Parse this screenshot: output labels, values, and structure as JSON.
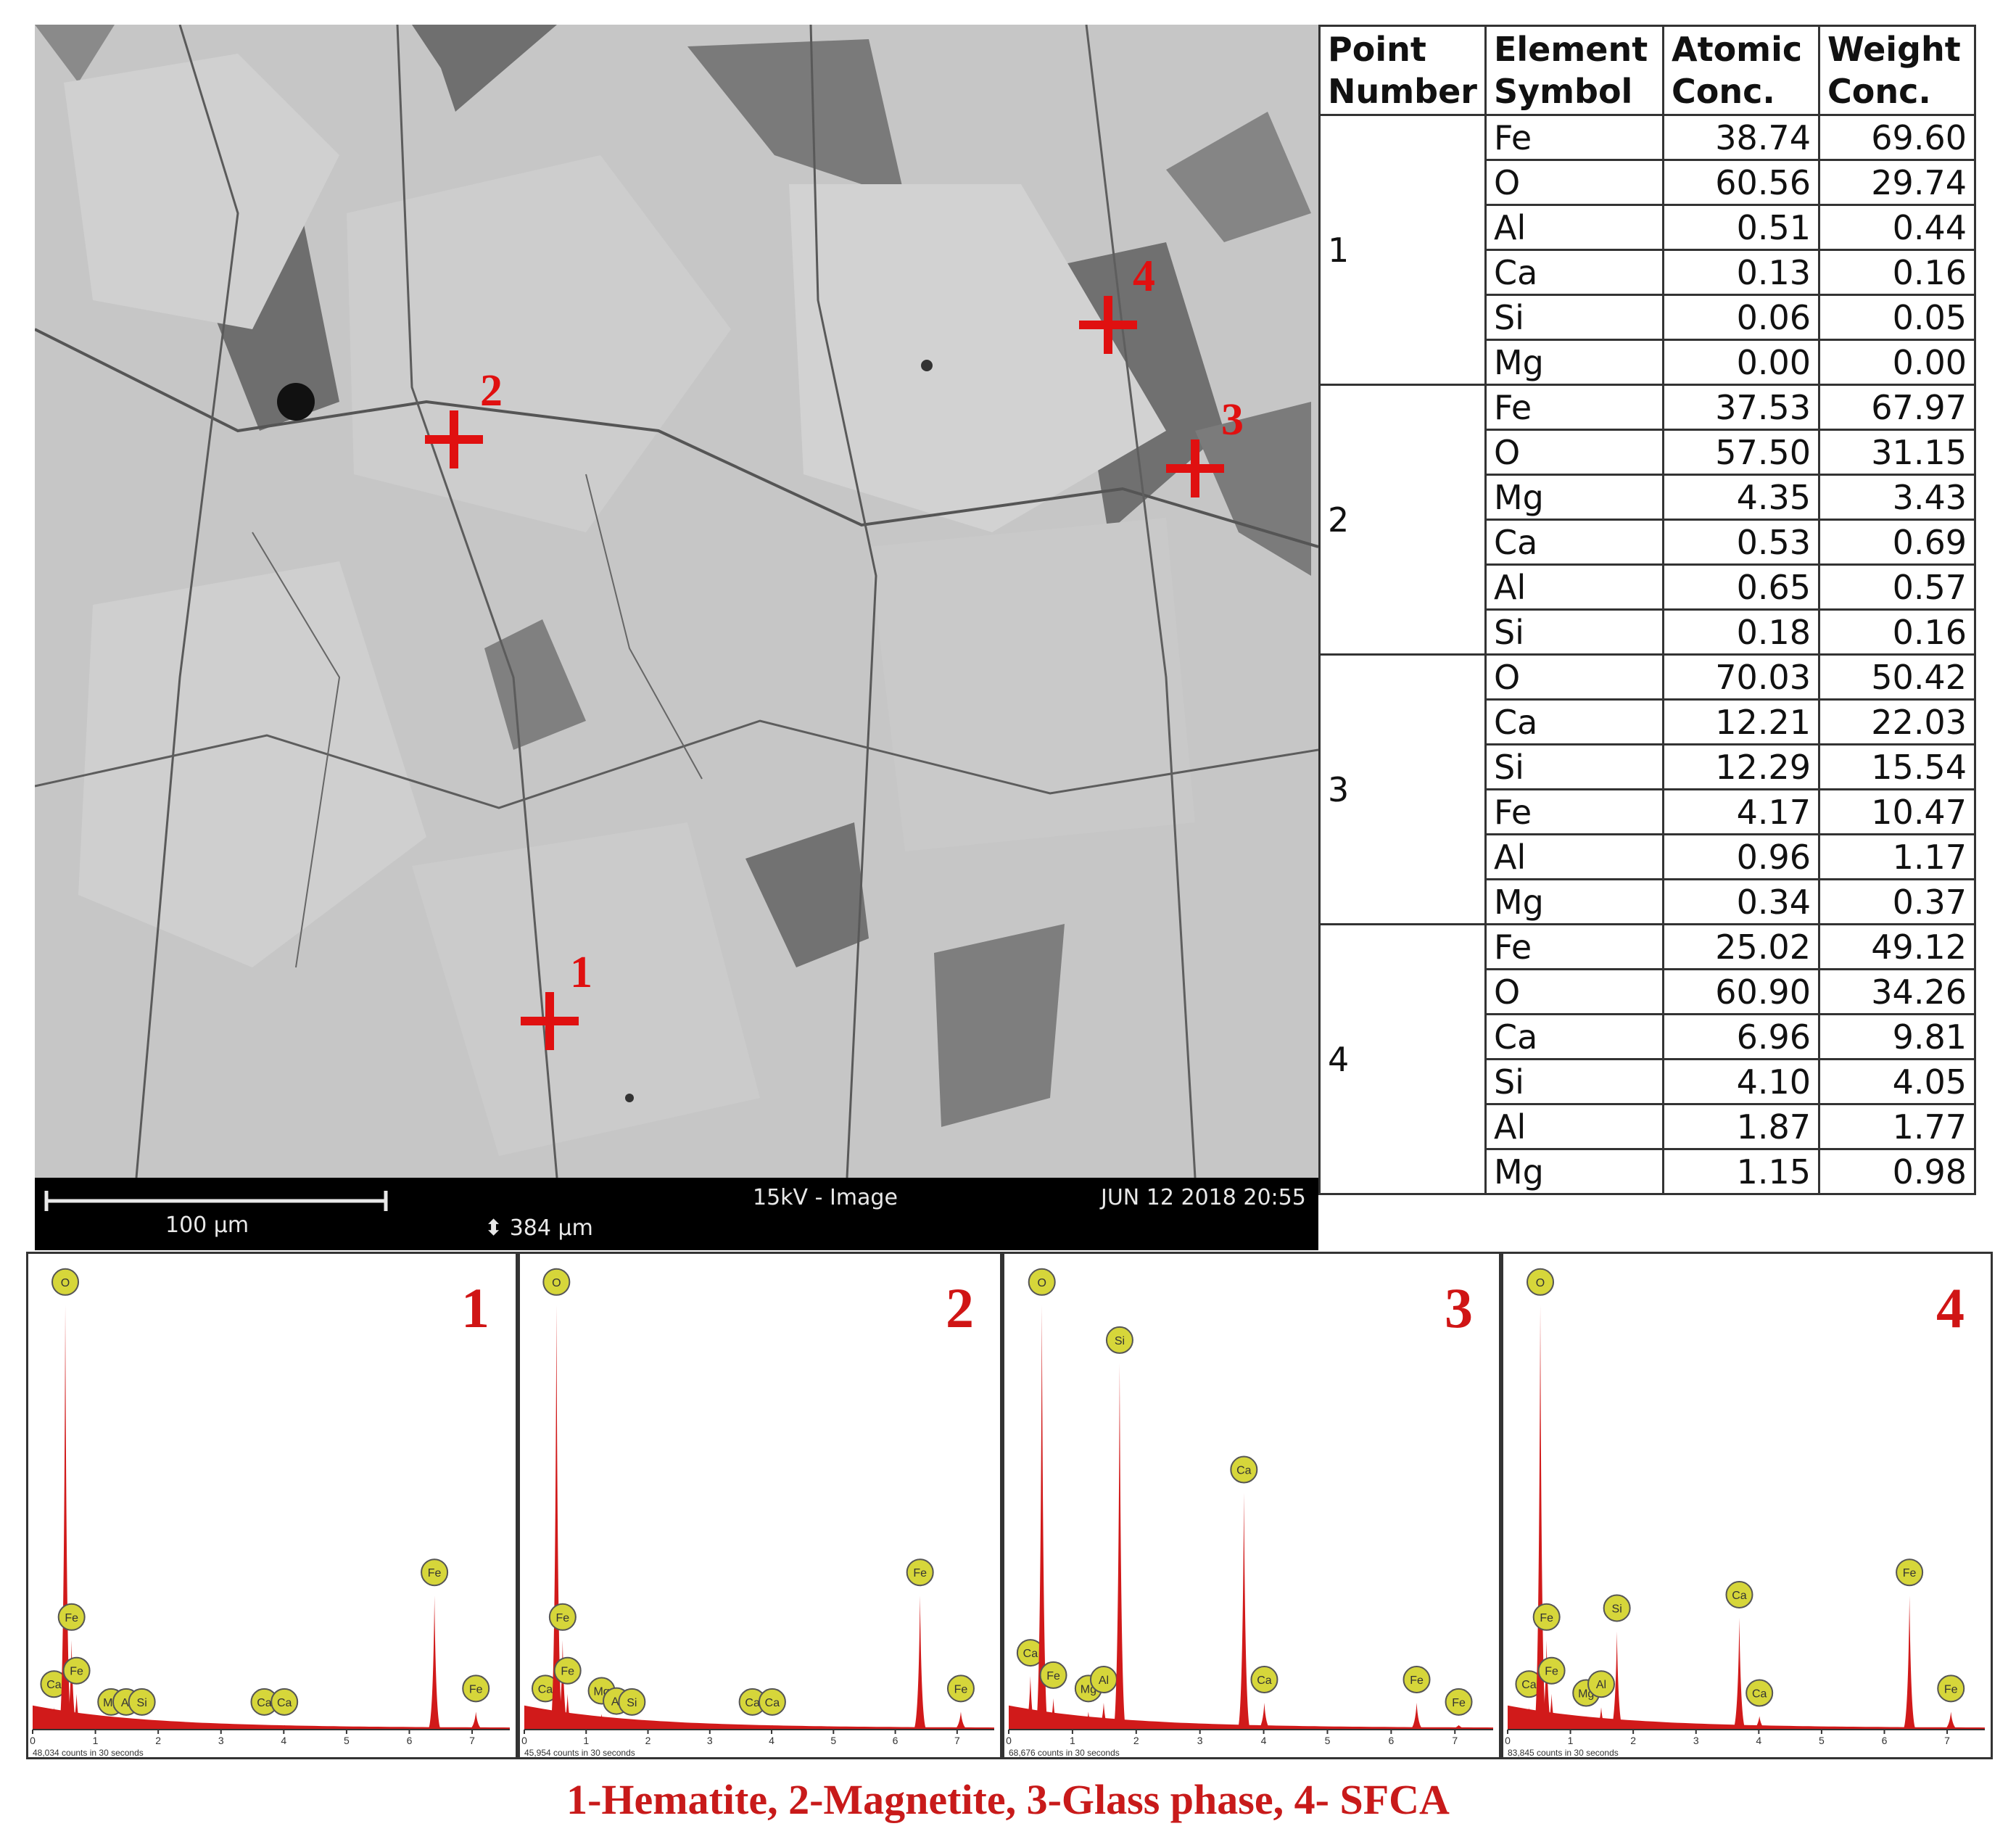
{
  "sem": {
    "scale_label": "100 µm",
    "mode_label": "15kV - Image",
    "date_label": "JUN 12 2018 20:55",
    "field_width_label": "384 µm",
    "markers": [
      {
        "label": "1"
      },
      {
        "label": "2"
      },
      {
        "label": "3"
      },
      {
        "label": "4"
      }
    ]
  },
  "table": {
    "headers": [
      "Point Number",
      "Element Symbol",
      "Atomic Conc.",
      "Weight Conc."
    ],
    "points": [
      {
        "point": "1",
        "rows": [
          {
            "el": "Fe",
            "at": "38.74",
            "wt": "69.60"
          },
          {
            "el": "O",
            "at": "60.56",
            "wt": "29.74"
          },
          {
            "el": "Al",
            "at": "0.51",
            "wt": "0.44"
          },
          {
            "el": "Ca",
            "at": "0.13",
            "wt": "0.16"
          },
          {
            "el": "Si",
            "at": "0.06",
            "wt": "0.05"
          },
          {
            "el": "Mg",
            "at": "0.00",
            "wt": "0.00"
          }
        ]
      },
      {
        "point": "2",
        "rows": [
          {
            "el": "Fe",
            "at": "37.53",
            "wt": "67.97"
          },
          {
            "el": "O",
            "at": "57.50",
            "wt": "31.15"
          },
          {
            "el": "Mg",
            "at": "4.35",
            "wt": "3.43"
          },
          {
            "el": "Ca",
            "at": "0.53",
            "wt": "0.69"
          },
          {
            "el": "Al",
            "at": "0.65",
            "wt": "0.57"
          },
          {
            "el": "Si",
            "at": "0.18",
            "wt": "0.16"
          }
        ]
      },
      {
        "point": "3",
        "rows": [
          {
            "el": "O",
            "at": "70.03",
            "wt": "50.42"
          },
          {
            "el": "Ca",
            "at": "12.21",
            "wt": "22.03"
          },
          {
            "el": "Si",
            "at": "12.29",
            "wt": "15.54"
          },
          {
            "el": "Fe",
            "at": "4.17",
            "wt": "10.47"
          },
          {
            "el": "Al",
            "at": "0.96",
            "wt": "1.17"
          },
          {
            "el": "Mg",
            "at": "0.34",
            "wt": "0.37"
          }
        ]
      },
      {
        "point": "4",
        "rows": [
          {
            "el": "Fe",
            "at": "25.02",
            "wt": "49.12"
          },
          {
            "el": "O",
            "at": "60.90",
            "wt": "34.26"
          },
          {
            "el": "Ca",
            "at": "6.96",
            "wt": "9.81"
          },
          {
            "el": "Si",
            "at": "4.10",
            "wt": "4.05"
          },
          {
            "el": "Al",
            "at": "1.87",
            "wt": "1.77"
          },
          {
            "el": "Mg",
            "at": "1.15",
            "wt": "0.98"
          }
        ]
      }
    ]
  },
  "spectra": [
    {
      "number": "1",
      "counts_label": "48,034 counts in 30 seconds",
      "peaks": [
        {
          "label": "Ca",
          "kev": 0.34,
          "height": 0.05
        },
        {
          "label": "O",
          "kev": 0.52,
          "height": 0.95
        },
        {
          "label": "Fe",
          "kev": 0.62,
          "height": 0.2
        },
        {
          "label": "Fe",
          "kev": 0.7,
          "height": 0.08
        },
        {
          "label": "Mg",
          "kev": 1.25,
          "height": 0.01
        },
        {
          "label": "Al",
          "kev": 1.49,
          "height": 0.01
        },
        {
          "label": "Si",
          "kev": 1.74,
          "height": 0.01
        },
        {
          "label": "Ca",
          "kev": 3.69,
          "height": 0.01
        },
        {
          "label": "Ca",
          "kev": 4.01,
          "height": 0.01
        },
        {
          "label": "Fe",
          "kev": 6.4,
          "height": 0.3
        },
        {
          "label": "Fe",
          "kev": 7.06,
          "height": 0.04
        }
      ]
    },
    {
      "number": "2",
      "counts_label": "45,954 counts in 30 seconds",
      "peaks": [
        {
          "label": "Ca",
          "kev": 0.34,
          "height": 0.04
        },
        {
          "label": "O",
          "kev": 0.52,
          "height": 0.95
        },
        {
          "label": "Fe",
          "kev": 0.62,
          "height": 0.2
        },
        {
          "label": "Fe",
          "kev": 0.7,
          "height": 0.08
        },
        {
          "label": "Mg",
          "kev": 1.25,
          "height": 0.035
        },
        {
          "label": "Al",
          "kev": 1.49,
          "height": 0.012
        },
        {
          "label": "Si",
          "kev": 1.74,
          "height": 0.01
        },
        {
          "label": "Ca",
          "kev": 3.69,
          "height": 0.01
        },
        {
          "label": "Ca",
          "kev": 4.01,
          "height": 0.01
        },
        {
          "label": "Fe",
          "kev": 6.4,
          "height": 0.3
        },
        {
          "label": "Fe",
          "kev": 7.06,
          "height": 0.04
        }
      ]
    },
    {
      "number": "3",
      "counts_label": "68,676 counts in 30 seconds",
      "peaks": [
        {
          "label": "Ca",
          "kev": 0.34,
          "height": 0.12
        },
        {
          "label": "O",
          "kev": 0.52,
          "height": 0.95
        },
        {
          "label": "Fe",
          "kev": 0.7,
          "height": 0.07
        },
        {
          "label": "Mg",
          "kev": 1.25,
          "height": 0.04
        },
        {
          "label": "Al",
          "kev": 1.49,
          "height": 0.06
        },
        {
          "label": "Si",
          "kev": 1.74,
          "height": 0.82
        },
        {
          "label": "Ca",
          "kev": 3.69,
          "height": 0.53
        },
        {
          "label": "Ca",
          "kev": 4.01,
          "height": 0.06
        },
        {
          "label": "Fe",
          "kev": 6.4,
          "height": 0.06
        },
        {
          "label": "Fe",
          "kev": 7.06,
          "height": 0.01
        }
      ]
    },
    {
      "number": "4",
      "counts_label": "83,845 counts in 30 seconds",
      "peaks": [
        {
          "label": "Ca",
          "kev": 0.34,
          "height": 0.05
        },
        {
          "label": "O",
          "kev": 0.52,
          "height": 0.95
        },
        {
          "label": "Fe",
          "kev": 0.62,
          "height": 0.2
        },
        {
          "label": "Fe",
          "kev": 0.7,
          "height": 0.08
        },
        {
          "label": "Mg",
          "kev": 1.25,
          "height": 0.03
        },
        {
          "label": "Al",
          "kev": 1.49,
          "height": 0.05
        },
        {
          "label": "Si",
          "kev": 1.74,
          "height": 0.22
        },
        {
          "label": "Ca",
          "kev": 3.69,
          "height": 0.25
        },
        {
          "label": "Ca",
          "kev": 4.01,
          "height": 0.03
        },
        {
          "label": "Fe",
          "kev": 6.4,
          "height": 0.3
        },
        {
          "label": "Fe",
          "kev": 7.06,
          "height": 0.04
        }
      ]
    }
  ],
  "spectrum_axis": {
    "ticks": [
      "0",
      "1",
      "2",
      "3",
      "4",
      "5",
      "6",
      "7"
    ],
    "kev_max": 7.6
  },
  "colors": {
    "peak_fill": "#d11a1a",
    "label_circle": "#d6d63a",
    "marker": "#e01010"
  },
  "caption": "1-Hematite, 2-Magnetite, 3-Glass phase, 4- SFCA"
}
